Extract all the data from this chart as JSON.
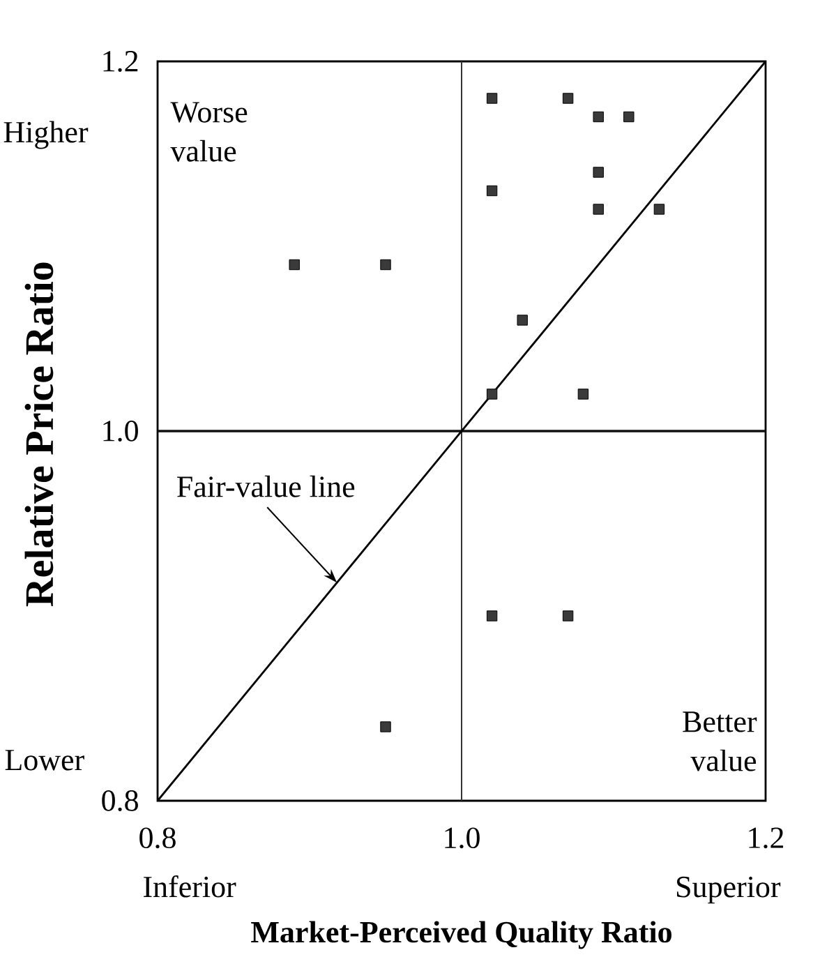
{
  "chart_data": {
    "type": "scatter",
    "xlabel": "Market-Perceived Quality Ratio",
    "ylabel": "Relative Price Ratio",
    "xlim": [
      0.8,
      1.2
    ],
    "ylim": [
      0.8,
      1.2
    ],
    "xticks": [
      0.8,
      {
        "value": 1.0,
        "label": "1.0"
      },
      1.2
    ],
    "yticks": [
      0.8,
      {
        "value": 1.0,
        "label": "1.0"
      },
      1.2
    ],
    "marker": "square",
    "series": [
      {
        "type": "scatter",
        "color": "#3a3a3a",
        "x": [
          1.02,
          1.07,
          1.09,
          1.11,
          1.09,
          1.02,
          1.09,
          1.13,
          1.04,
          1.02,
          1.08,
          0.89,
          0.95,
          1.02,
          1.07,
          0.95
        ],
        "values": [
          1.18,
          1.18,
          1.17,
          1.17,
          1.14,
          1.13,
          1.12,
          1.12,
          1.06,
          1.02,
          1.02,
          1.09,
          1.09,
          0.9,
          0.9,
          0.84
        ]
      },
      {
        "type": "line",
        "name": "Fair-value line",
        "color": "#000000",
        "marker": "none",
        "x": [
          0.8,
          1.2
        ],
        "values": [
          0.8,
          1.2
        ]
      }
    ],
    "ref_lines": [
      {
        "axis": "x",
        "value": 1.0,
        "color": "#333333"
      },
      {
        "axis": "y",
        "value": 1.0,
        "color": "#111111"
      }
    ],
    "annotations": [
      "Worse value",
      "Better value",
      "Higher",
      "Lower",
      "Inferior",
      "Superior"
    ]
  }
}
